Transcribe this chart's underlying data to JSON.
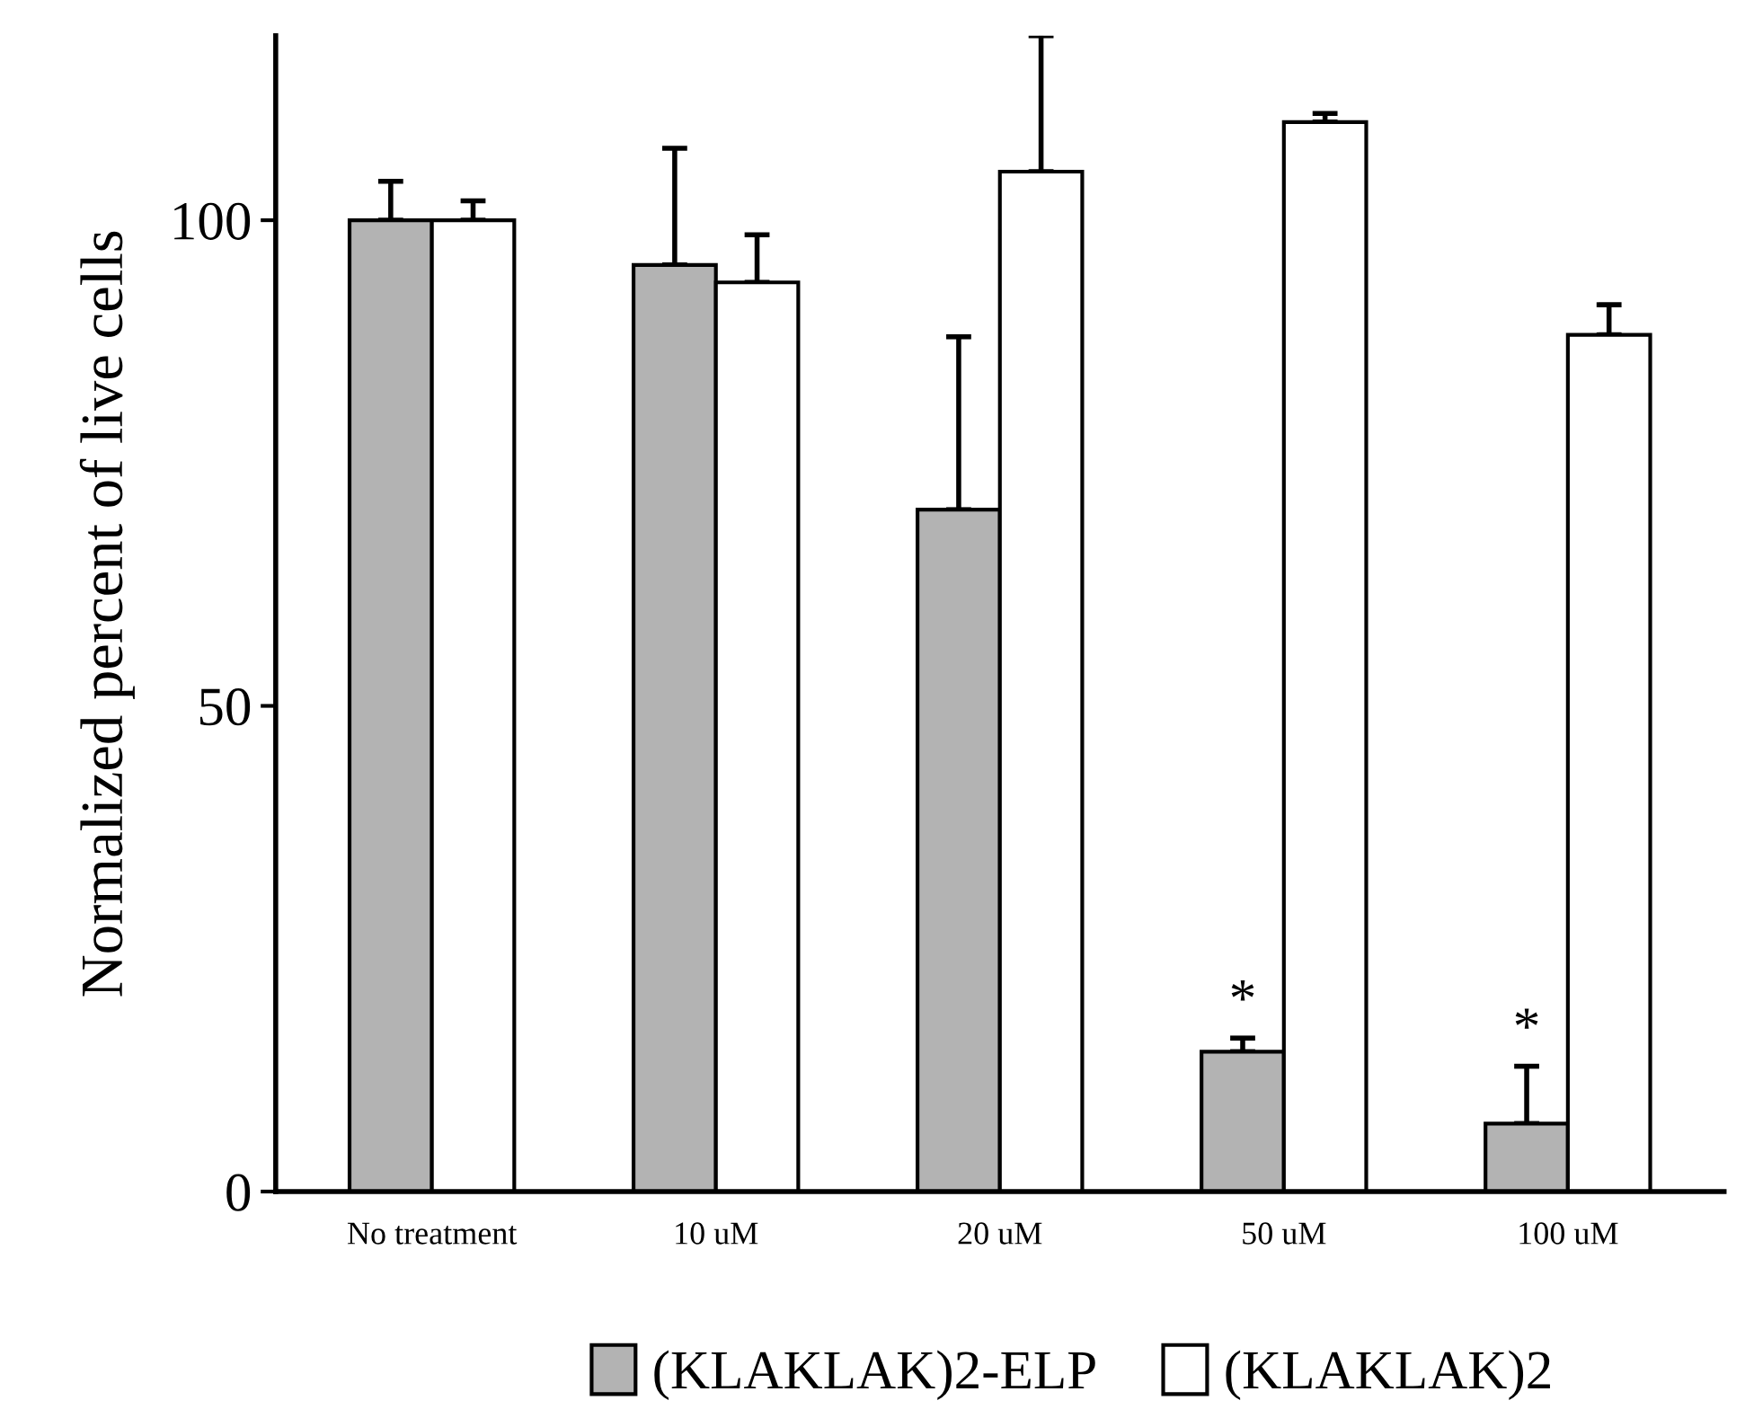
{
  "chart_data": {
    "type": "bar",
    "ylabel": "Normalized percent of live cells",
    "categories": [
      "No treatment",
      "10 uM",
      "20 uM",
      "50 uM",
      "100 uM"
    ],
    "series": [
      {
        "name": "(KLAKLAK)2-ELP",
        "color": "#b3b3b3",
        "values": [
          100,
          95.4,
          70.2,
          14.4,
          7.0
        ],
        "errors": [
          [
            100,
            104.0
          ],
          [
            95.4,
            107.4
          ],
          [
            70.2,
            88.0
          ],
          [
            14.4,
            15.8
          ],
          [
            7.0,
            12.9
          ]
        ]
      },
      {
        "name": "(KLAKLAK)2",
        "color": "#ffffff",
        "values": [
          100,
          93.6,
          105.0,
          110.1,
          88.2
        ],
        "errors": [
          [
            100,
            102.0
          ],
          [
            93.6,
            98.5
          ],
          [
            105.0,
            119.0
          ],
          [
            110.1,
            111.0
          ],
          [
            88.2,
            91.3
          ]
        ]
      }
    ],
    "ylim": [
      0,
      119
    ],
    "yticks": [
      0,
      50,
      100
    ],
    "grid": false,
    "legend": "bottom",
    "annotations": [
      {
        "text": "*",
        "x": "50 uM",
        "y": 15.8
      },
      {
        "text": "*",
        "x": "100 uM",
        "y": 12.9
      }
    ]
  }
}
